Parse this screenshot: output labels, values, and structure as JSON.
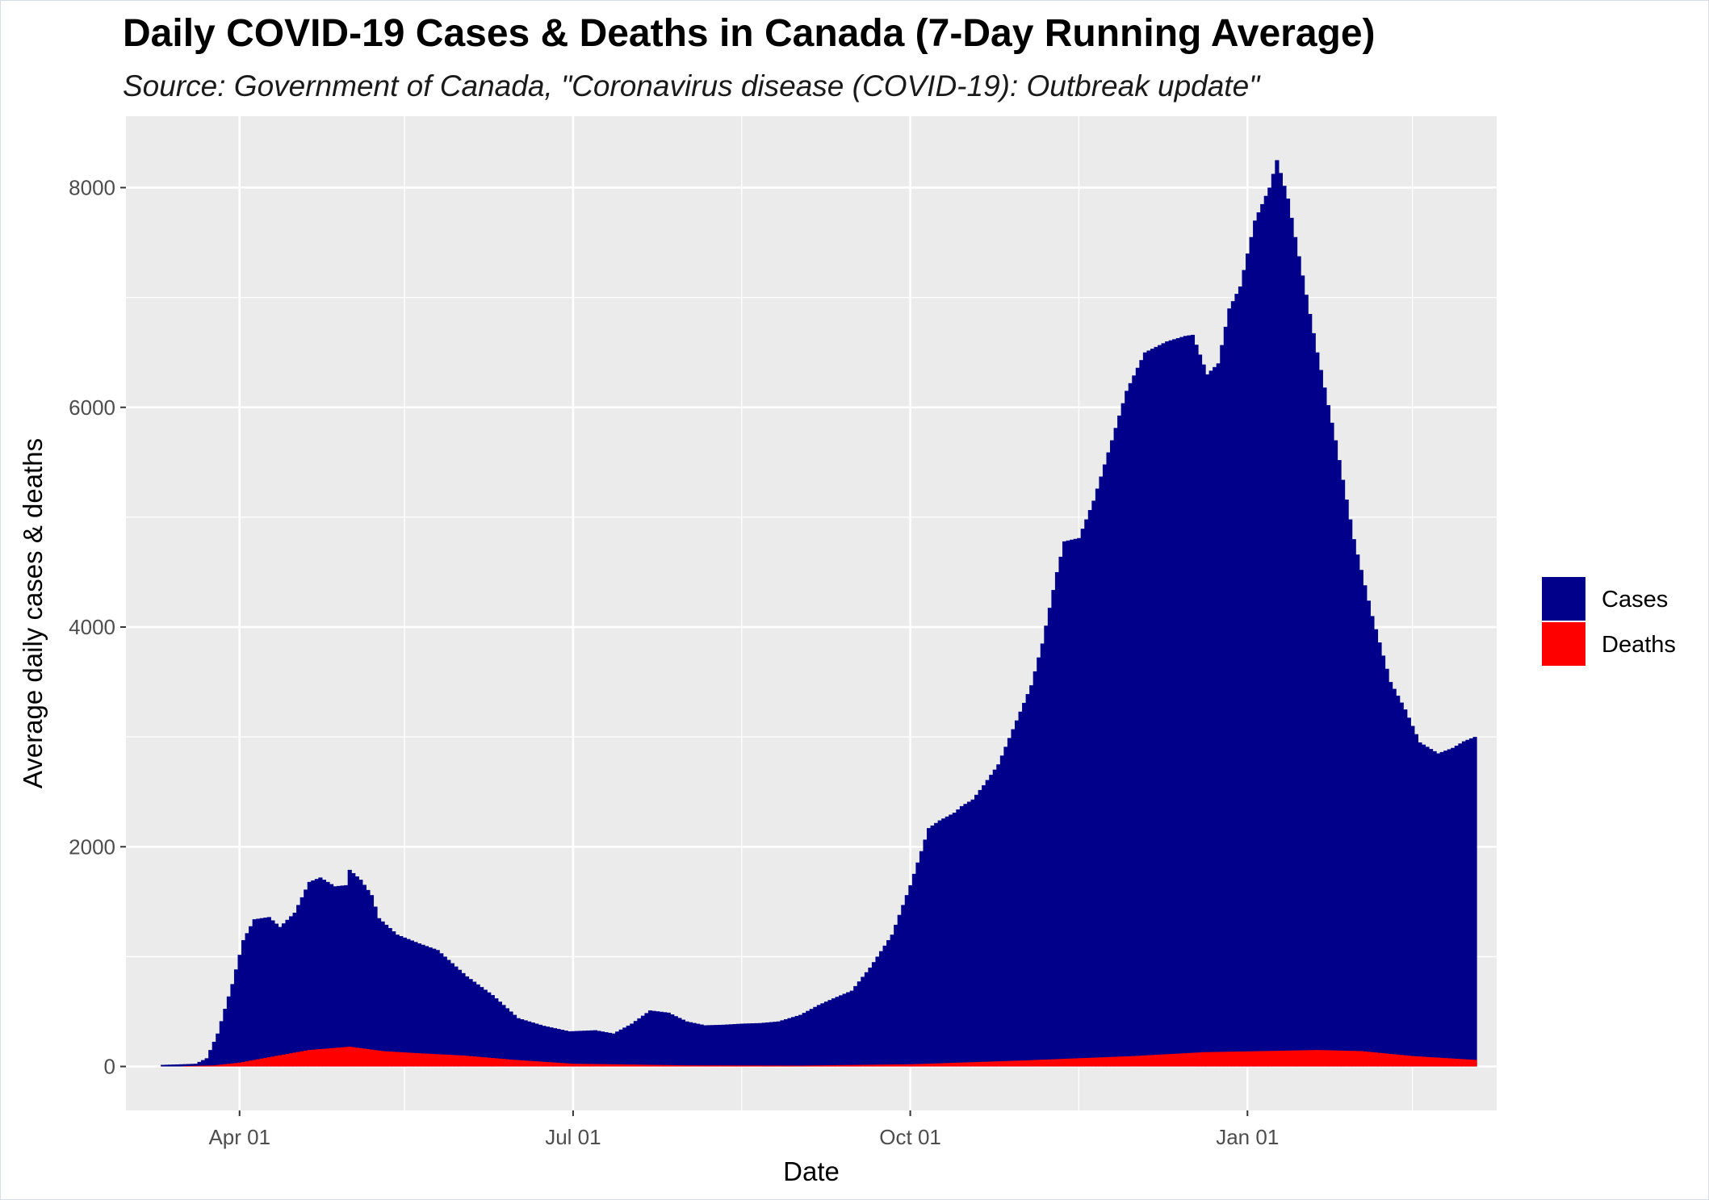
{
  "chart_data": {
    "type": "bar",
    "title": "Daily COVID-19 Cases & Deaths in Canada (7-Day Running Average)",
    "subtitle": "Source: Government of Canada, \"Coronavirus disease (COVID-19): Outbreak update\"",
    "xlabel": "Date",
    "ylabel": "Average daily cases & deaths",
    "ylim": [
      -400,
      8650
    ],
    "xlim": [
      "2020-03-01",
      "2021-03-10"
    ],
    "x_ticks": [
      {
        "date": "2020-04-01",
        "label": "Apr 01"
      },
      {
        "date": "2020-07-01",
        "label": "Jul 01"
      },
      {
        "date": "2020-10-01",
        "label": "Oct 01"
      },
      {
        "date": "2021-01-01",
        "label": "Jan 01"
      }
    ],
    "x_minor_ticks": [
      "2020-05-16",
      "2020-08-16",
      "2020-11-16",
      "2021-02-15"
    ],
    "y_ticks": [
      0,
      2000,
      4000,
      6000,
      8000
    ],
    "y_minor_ticks": [
      1000,
      3000,
      5000,
      7000
    ],
    "grid": true,
    "background": "#ebebeb",
    "legend": {
      "position": "right",
      "items": [
        {
          "name": "Cases",
          "color": "#00008b"
        },
        {
          "name": "Deaths",
          "color": "#ff0000"
        }
      ]
    },
    "series": [
      {
        "name": "Cases",
        "color": "#00008b",
        "stacked": true,
        "start": "2020-03-11",
        "end": "2021-03-04",
        "keyframes": [
          [
            "2020-03-11",
            15
          ],
          [
            "2020-03-16",
            20
          ],
          [
            "2020-03-20",
            25
          ],
          [
            "2020-03-23",
            75
          ],
          [
            "2020-03-26",
            300
          ],
          [
            "2020-03-30",
            750
          ],
          [
            "2020-04-02",
            1150
          ],
          [
            "2020-04-05",
            1340
          ],
          [
            "2020-04-09",
            1360
          ],
          [
            "2020-04-12",
            1270
          ],
          [
            "2020-04-16",
            1400
          ],
          [
            "2020-04-20",
            1680
          ],
          [
            "2020-04-23",
            1720
          ],
          [
            "2020-04-27",
            1640
          ],
          [
            "2020-04-30",
            1650
          ],
          [
            "2020-05-01",
            1790
          ],
          [
            "2020-05-04",
            1700
          ],
          [
            "2020-05-07",
            1560
          ],
          [
            "2020-05-09",
            1350
          ],
          [
            "2020-05-14",
            1200
          ],
          [
            "2020-05-20",
            1120
          ],
          [
            "2020-05-25",
            1060
          ],
          [
            "2020-06-02",
            820
          ],
          [
            "2020-06-09",
            650
          ],
          [
            "2020-06-16",
            440
          ],
          [
            "2020-06-23",
            370
          ],
          [
            "2020-06-30",
            320
          ],
          [
            "2020-07-07",
            330
          ],
          [
            "2020-07-12",
            300
          ],
          [
            "2020-07-17",
            390
          ],
          [
            "2020-07-22",
            510
          ],
          [
            "2020-07-27",
            490
          ],
          [
            "2020-08-01",
            410
          ],
          [
            "2020-08-06",
            375
          ],
          [
            "2020-08-11",
            380
          ],
          [
            "2020-08-16",
            390
          ],
          [
            "2020-08-21",
            395
          ],
          [
            "2020-08-26",
            410
          ],
          [
            "2020-09-01",
            470
          ],
          [
            "2020-09-06",
            560
          ],
          [
            "2020-09-10",
            620
          ],
          [
            "2020-09-15",
            690
          ],
          [
            "2020-09-20",
            900
          ],
          [
            "2020-09-26",
            1200
          ],
          [
            "2020-10-01",
            1650
          ],
          [
            "2020-10-04",
            1960
          ],
          [
            "2020-10-06",
            2170
          ],
          [
            "2020-10-09",
            2240
          ],
          [
            "2020-10-13",
            2310
          ],
          [
            "2020-10-15",
            2370
          ],
          [
            "2020-10-18",
            2430
          ],
          [
            "2020-10-21",
            2560
          ],
          [
            "2020-10-25",
            2750
          ],
          [
            "2020-10-30",
            3150
          ],
          [
            "2020-11-03",
            3470
          ],
          [
            "2020-11-06",
            3850
          ],
          [
            "2020-11-10",
            4500
          ],
          [
            "2020-11-12",
            4780
          ],
          [
            "2020-11-16",
            4810
          ],
          [
            "2020-11-20",
            5150
          ],
          [
            "2020-11-25",
            5700
          ],
          [
            "2020-11-29",
            6150
          ],
          [
            "2020-12-04",
            6500
          ],
          [
            "2020-12-10",
            6600
          ],
          [
            "2020-12-15",
            6650
          ],
          [
            "2020-12-17",
            6660
          ],
          [
            "2020-12-21",
            6300
          ],
          [
            "2020-12-24",
            6400
          ],
          [
            "2020-12-27",
            6900
          ],
          [
            "2020-12-30",
            7100
          ],
          [
            "2021-01-03",
            7700
          ],
          [
            "2021-01-07",
            8000
          ],
          [
            "2021-01-09",
            8250
          ],
          [
            "2021-01-12",
            7900
          ],
          [
            "2021-01-16",
            7200
          ],
          [
            "2021-01-20",
            6500
          ],
          [
            "2021-01-25",
            5700
          ],
          [
            "2021-01-30",
            4800
          ],
          [
            "2021-02-04",
            4100
          ],
          [
            "2021-02-09",
            3500
          ],
          [
            "2021-02-13",
            3250
          ],
          [
            "2021-02-17",
            2950
          ],
          [
            "2021-02-22",
            2850
          ],
          [
            "2021-02-26",
            2900
          ],
          [
            "2021-03-01",
            2960
          ],
          [
            "2021-03-04",
            3000
          ]
        ]
      },
      {
        "name": "Deaths",
        "color": "#ff0000",
        "stacked": true,
        "start": "2020-03-17",
        "end": "2021-03-04",
        "keyframes": [
          [
            "2020-03-17",
            3
          ],
          [
            "2020-03-25",
            10
          ],
          [
            "2020-04-01",
            35
          ],
          [
            "2020-04-10",
            90
          ],
          [
            "2020-04-20",
            150
          ],
          [
            "2020-05-01",
            180
          ],
          [
            "2020-05-10",
            140
          ],
          [
            "2020-05-20",
            120
          ],
          [
            "2020-06-01",
            100
          ],
          [
            "2020-06-15",
            60
          ],
          [
            "2020-07-01",
            25
          ],
          [
            "2020-08-01",
            10
          ],
          [
            "2020-09-01",
            8
          ],
          [
            "2020-10-01",
            20
          ],
          [
            "2020-11-01",
            55
          ],
          [
            "2020-12-01",
            95
          ],
          [
            "2020-12-20",
            130
          ],
          [
            "2021-01-05",
            140
          ],
          [
            "2021-01-20",
            150
          ],
          [
            "2021-02-01",
            140
          ],
          [
            "2021-02-15",
            95
          ],
          [
            "2021-03-04",
            60
          ]
        ]
      }
    ]
  }
}
